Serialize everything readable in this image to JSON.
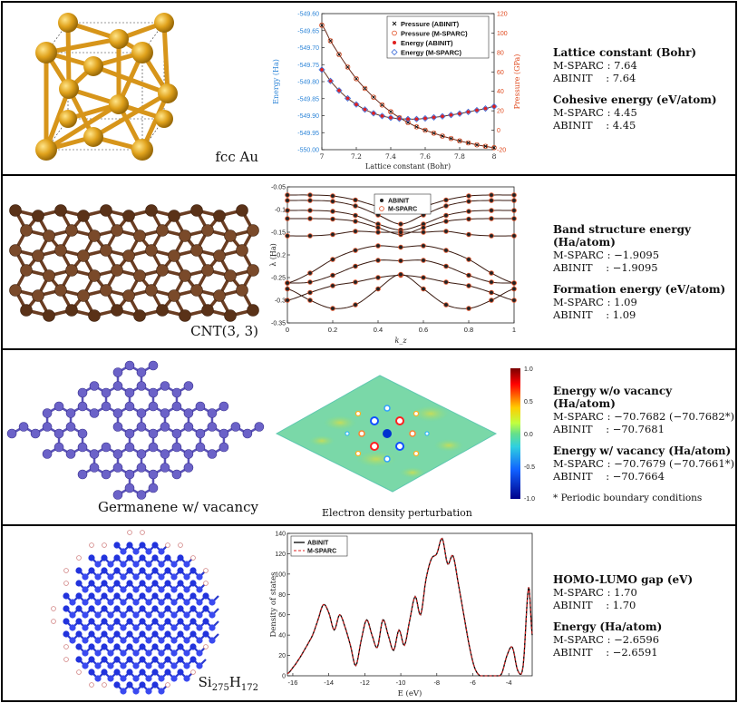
{
  "rows": {
    "fcc": {
      "label": "fcc Au",
      "lattice_heading": "Lattice constant (Bohr)",
      "lattice_msparc": "M-SPARC : 7.64",
      "lattice_abinit": "ABINIT    : 7.64",
      "cohesive_heading": "Cohesive energy (eV/atom)",
      "cohesive_msparc": "M-SPARC : 4.45",
      "cohesive_abinit": "ABINIT    : 4.45"
    },
    "cnt": {
      "label": "CNT(3, 3)",
      "band_heading": "Band structure energy (Ha/atom)",
      "band_msparc": "M-SPARC : −1.9095",
      "band_abinit": "ABINIT    : −1.9095",
      "formation_heading": "Formation energy (eV/atom)",
      "formation_msparc": "M-SPARC : 1.09",
      "formation_abinit": "ABINIT    : 1.09"
    },
    "germanene": {
      "label": "Germanene w/ vacancy",
      "plot_caption": "Electron density perturbation",
      "wo_heading": "Energy w/o vacancy (Ha/atom)",
      "wo_msparc": "M-SPARC : −70.7682 (−70.7682*)",
      "wo_abinit": "ABINIT    : −70.7681",
      "w_heading": "Energy w/ vacancy (Ha/atom)",
      "w_msparc": "M-SPARC : −70.7679 (−70.7661*)",
      "w_abinit": "ABINIT    : −70.7664",
      "footnote": "* Periodic boundary conditions",
      "colorbar_ticks": [
        "1.0",
        "0.5",
        "0.0",
        "-0.5",
        "-1.0"
      ]
    },
    "si": {
      "label_base": "Si",
      "label_sub1": "275",
      "label_mid": "H",
      "label_sub2": "172",
      "gap_heading": "HOMO-LUMO gap (eV)",
      "gap_msparc": "M-SPARC : 1.70",
      "gap_abinit": "ABINIT    : 1.70",
      "energy_heading": "Energy (Ha/atom)",
      "energy_msparc": "M-SPARC : −2.6596",
      "energy_abinit": "ABINIT    : −2.6591"
    }
  },
  "colors": {
    "gold": "#e0a21c",
    "carbon": "#7a4a2a",
    "germanium": "#6b62c8",
    "silicon": "#2233dd",
    "hydrogen": "#e8b6b6",
    "energy_axis": "#2f86d8",
    "pressure_axis": "#e0491d"
  },
  "chart_data": [
    {
      "type": "line",
      "title": "",
      "xlabel": "Lattice constant (Bohr)",
      "ylabel": "Energy (Ha)",
      "ylabel_right": "Pressure (GPa)",
      "xlim": [
        7,
        8
      ],
      "ylim": [
        -550.0,
        -549.6
      ],
      "ylim_right": [
        -20,
        120
      ],
      "xticks": [
        "7",
        "7.2",
        "7.4",
        "7.6",
        "7.8",
        "8"
      ],
      "yticks": [
        "-549.60",
        "-549.65",
        "-549.70",
        "-549.75",
        "-549.80",
        "-549.85",
        "-549.90",
        "-549.95",
        "-550.00"
      ],
      "yticks_right": [
        "120",
        "100",
        "80",
        "60",
        "40",
        "20",
        "0",
        "-20"
      ],
      "legend": [
        "Pressure (ABINIT)",
        "Pressure (M-SPARC)",
        "Energy (ABINIT)",
        "Energy (M-SPARC)"
      ],
      "x": [
        7.0,
        7.05,
        7.1,
        7.15,
        7.2,
        7.25,
        7.3,
        7.35,
        7.4,
        7.45,
        7.5,
        7.55,
        7.6,
        7.65,
        7.7,
        7.75,
        7.8,
        7.85,
        7.9,
        7.95,
        8.0
      ],
      "series": [
        {
          "name": "Energy",
          "axis": "left",
          "values": [
            -549.765,
            -549.798,
            -549.826,
            -549.849,
            -549.867,
            -549.882,
            -549.893,
            -549.901,
            -549.906,
            -549.909,
            -549.91,
            -549.91,
            -549.908,
            -549.905,
            -549.902,
            -549.898,
            -549.894,
            -549.889,
            -549.884,
            -549.879,
            -549.873
          ]
        },
        {
          "name": "Pressure",
          "axis": "right",
          "values": [
            108,
            92,
            78,
            65,
            53,
            43,
            34,
            26,
            19,
            13,
            8,
            3.5,
            0,
            -3,
            -6,
            -8.5,
            -11,
            -13,
            -15,
            -16.5,
            -18
          ]
        }
      ]
    },
    {
      "type": "line",
      "title": "",
      "xlabel": "k_z",
      "ylabel": "λ (Ha)",
      "xlim": [
        0,
        1
      ],
      "ylim": [
        -0.35,
        -0.05
      ],
      "xticks": [
        "0",
        "0.2",
        "0.4",
        "0.6",
        "0.8",
        "1"
      ],
      "yticks": [
        "-0.05",
        "-0.1",
        "-0.15",
        "-0.2",
        "-0.25",
        "-0.3",
        "-0.35"
      ],
      "legend": [
        "ABINIT",
        "M-SPARC"
      ],
      "x": [
        0,
        0.1,
        0.2,
        0.3,
        0.4,
        0.5,
        0.6,
        0.7,
        0.8,
        0.9,
        1.0
      ],
      "series": [
        {
          "name": "band1",
          "values": [
            -0.068,
            -0.068,
            -0.07,
            -0.079,
            -0.093,
            -0.1,
            -0.093,
            -0.079,
            -0.07,
            -0.068,
            -0.068
          ]
        },
        {
          "name": "band2",
          "values": [
            -0.08,
            -0.08,
            -0.082,
            -0.092,
            -0.112,
            -0.132,
            -0.112,
            -0.092,
            -0.082,
            -0.08,
            -0.08
          ]
        },
        {
          "name": "band3",
          "values": [
            -0.102,
            -0.102,
            -0.104,
            -0.113,
            -0.132,
            -0.145,
            -0.132,
            -0.113,
            -0.104,
            -0.102,
            -0.102
          ]
        },
        {
          "name": "band4",
          "values": [
            -0.12,
            -0.12,
            -0.121,
            -0.126,
            -0.14,
            -0.155,
            -0.14,
            -0.126,
            -0.121,
            -0.12,
            -0.12
          ]
        },
        {
          "name": "band5",
          "values": [
            -0.158,
            -0.158,
            -0.155,
            -0.148,
            -0.15,
            -0.15,
            -0.15,
            -0.148,
            -0.155,
            -0.158,
            -0.158
          ]
        },
        {
          "name": "band6",
          "values": [
            -0.262,
            -0.24,
            -0.21,
            -0.19,
            -0.18,
            -0.183,
            -0.18,
            -0.19,
            -0.21,
            -0.24,
            -0.262
          ]
        },
        {
          "name": "band7",
          "values": [
            -0.262,
            -0.26,
            -0.245,
            -0.225,
            -0.212,
            -0.213,
            -0.212,
            -0.225,
            -0.245,
            -0.26,
            -0.262
          ]
        },
        {
          "name": "band8",
          "values": [
            -0.3,
            -0.283,
            -0.268,
            -0.26,
            -0.25,
            -0.245,
            -0.25,
            -0.26,
            -0.268,
            -0.283,
            -0.3
          ]
        },
        {
          "name": "band9",
          "values": [
            -0.275,
            -0.3,
            -0.318,
            -0.31,
            -0.275,
            -0.243,
            -0.275,
            -0.31,
            -0.318,
            -0.3,
            -0.275
          ]
        }
      ]
    },
    {
      "type": "line",
      "title": "",
      "xlabel": "E (eV)",
      "ylabel": "Density of states",
      "xlim": [
        -16.3,
        -2.7
      ],
      "ylim": [
        0,
        140
      ],
      "xticks": [
        "-16",
        "-14",
        "-12",
        "-10",
        "-8",
        "-6",
        "-4"
      ],
      "yticks": [
        "0",
        "20",
        "40",
        "60",
        "80",
        "100",
        "120",
        "140"
      ],
      "legend": [
        "ABINIT",
        "M-SPARC"
      ],
      "x": [
        -16.3,
        -16.0,
        -15.6,
        -15.2,
        -14.9,
        -14.6,
        -14.3,
        -14.0,
        -13.7,
        -13.4,
        -13.1,
        -12.8,
        -12.5,
        -12.2,
        -11.9,
        -11.6,
        -11.3,
        -11.0,
        -10.7,
        -10.4,
        -10.1,
        -9.8,
        -9.5,
        -9.2,
        -8.9,
        -8.6,
        -8.3,
        -8.0,
        -7.7,
        -7.4,
        -7.1,
        -6.8,
        -6.5,
        -6.2,
        -5.9,
        -5.6,
        -5.3,
        -5.0,
        -4.7,
        -4.4,
        -4.1,
        -3.8,
        -3.5,
        -3.2,
        -2.9,
        -2.7
      ],
      "series": [
        {
          "name": "ABINIT",
          "values": [
            2,
            8,
            18,
            30,
            40,
            55,
            70,
            62,
            45,
            60,
            48,
            30,
            10,
            35,
            55,
            40,
            28,
            55,
            40,
            25,
            45,
            30,
            55,
            78,
            60,
            95,
            115,
            120,
            135,
            110,
            118,
            90,
            60,
            30,
            8,
            0,
            0,
            0,
            0,
            2,
            20,
            28,
            5,
            10,
            87,
            40
          ]
        }
      ]
    }
  ]
}
